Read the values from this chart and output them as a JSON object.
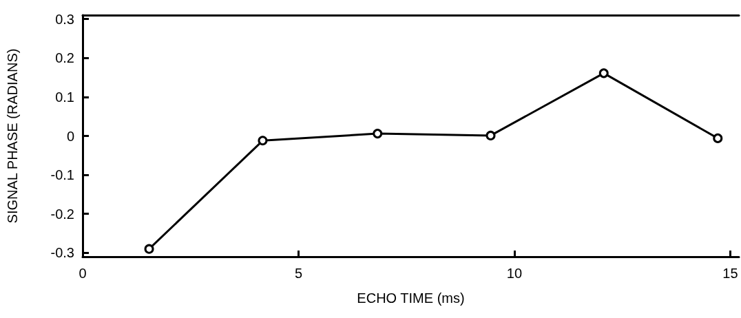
{
  "chart_data": {
    "type": "line",
    "xlabel": "ECHO TIME (ms)",
    "ylabel": "SIGNAL PHASE (RADIANS)",
    "x": [
      1.54,
      4.17,
      6.83,
      9.45,
      12.07,
      14.71
    ],
    "series": [
      {
        "color": "#000000",
        "values": [
          -0.29,
          -0.012,
          0.006,
          0.001,
          0.161,
          -0.006
        ]
      }
    ],
    "xlim": [
      0,
      15.2
    ],
    "xticks": [
      0,
      5,
      10,
      15
    ],
    "ylim": [
      -0.31,
      0.31
    ],
    "yticks": [
      -0.3,
      -0.2,
      -0.1,
      0,
      0.1,
      0.2,
      0.3
    ],
    "grid": false,
    "marker": "circle",
    "line_style": "solid"
  }
}
